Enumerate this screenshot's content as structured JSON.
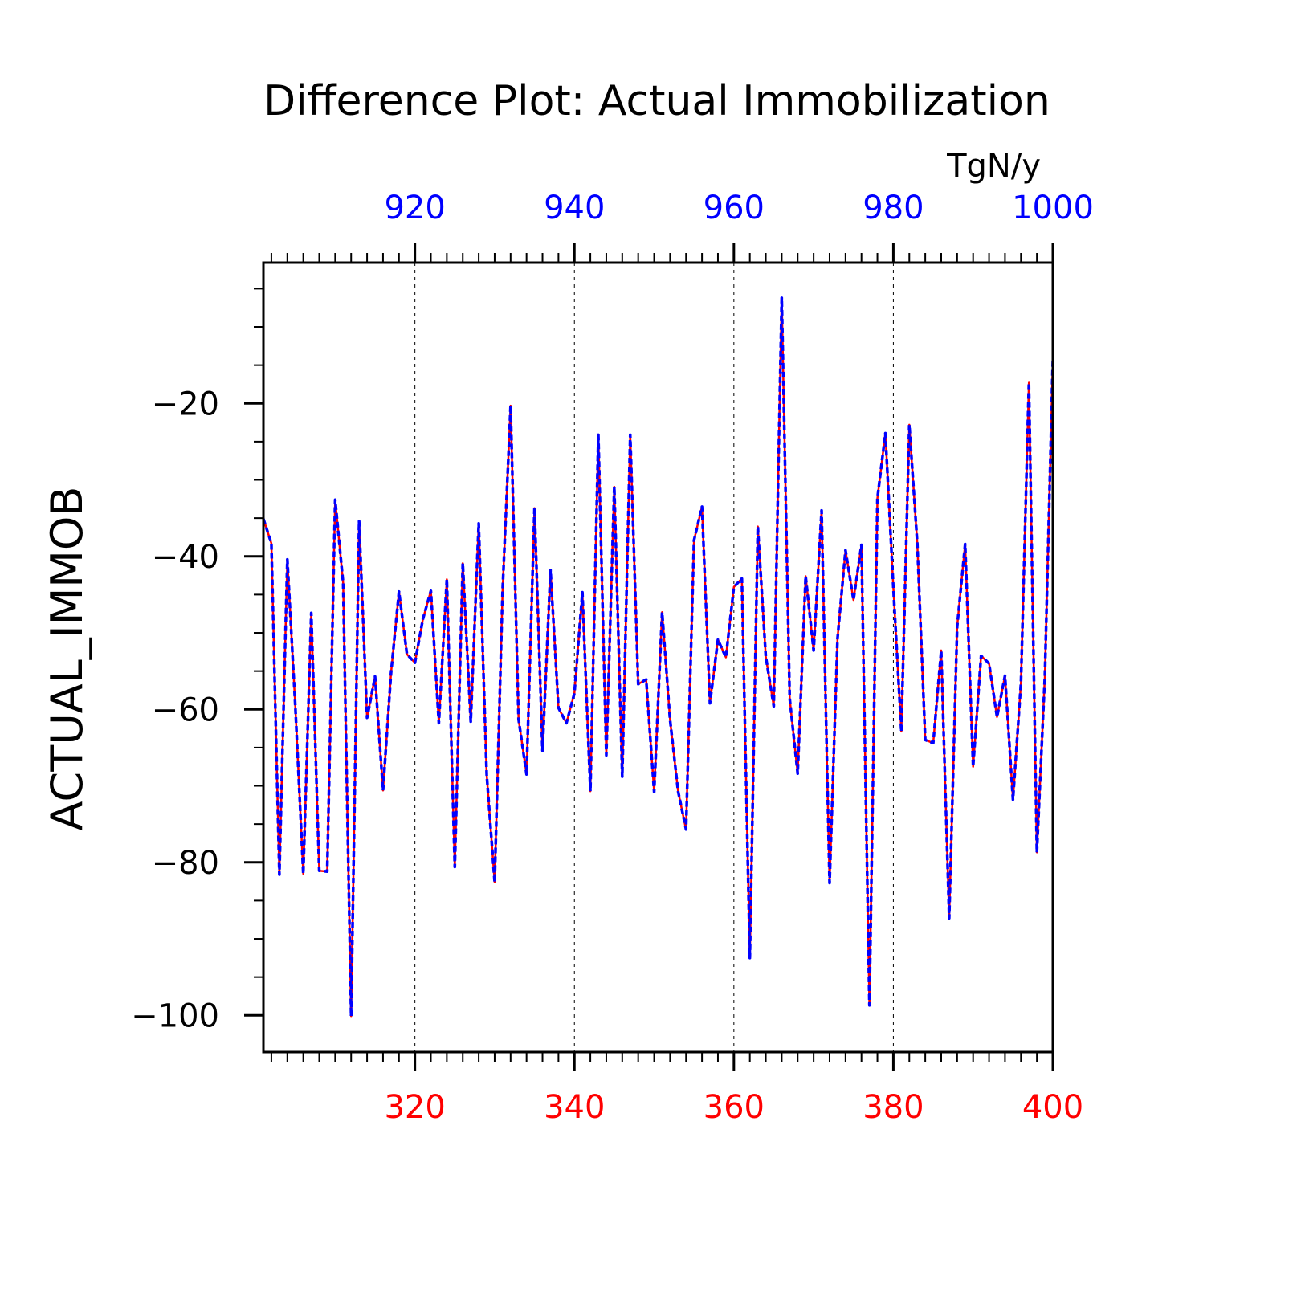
{
  "colors": {
    "series_red": "#ff0000",
    "series_blue": "#0000ff",
    "axis": "#000000",
    "grid": "#000000"
  },
  "chart_data": {
    "type": "line",
    "title": "Difference Plot: Actual Immobilization",
    "units": "TgN/y",
    "ylabel": "ACTUAL_IMMOB",
    "xlabel": "",
    "xlim": [
      301,
      400
    ],
    "xlim_top": [
      901,
      1000
    ],
    "ylim": [
      -104.8,
      -1.6
    ],
    "grid": "vertical dashed at major x ticks",
    "x_ticks_bottom": [
      {
        "value": 320,
        "label": "320"
      },
      {
        "value": 340,
        "label": "340"
      },
      {
        "value": 360,
        "label": "360"
      },
      {
        "value": 380,
        "label": "380"
      },
      {
        "value": 400,
        "label": "400"
      }
    ],
    "x_ticks_top": [
      {
        "value": 920,
        "label": "920"
      },
      {
        "value": 940,
        "label": "940"
      },
      {
        "value": 960,
        "label": "960"
      },
      {
        "value": 980,
        "label": "980"
      },
      {
        "value": 1000,
        "label": "1000"
      }
    ],
    "y_ticks": [
      {
        "value": -20,
        "label": "−20"
      },
      {
        "value": -40,
        "label": "−40"
      },
      {
        "value": -60,
        "label": "−60"
      },
      {
        "value": -80,
        "label": "−80"
      },
      {
        "value": -100,
        "label": "−100"
      }
    ],
    "x": [
      301,
      302,
      303,
      304,
      305,
      306,
      307,
      308,
      309,
      310,
      311,
      312,
      313,
      314,
      315,
      316,
      317,
      318,
      319,
      320,
      321,
      322,
      323,
      324,
      325,
      326,
      327,
      328,
      329,
      330,
      331,
      332,
      333,
      334,
      335,
      336,
      337,
      338,
      339,
      340,
      341,
      342,
      343,
      344,
      345,
      346,
      347,
      348,
      349,
      350,
      351,
      352,
      353,
      354,
      355,
      356,
      357,
      358,
      359,
      360,
      361,
      362,
      363,
      364,
      365,
      366,
      367,
      368,
      369,
      370,
      371,
      372,
      373,
      374,
      375,
      376,
      377,
      378,
      379,
      380,
      381,
      382,
      383,
      384,
      385,
      386,
      387,
      388,
      389,
      390,
      391,
      392,
      393,
      394,
      395,
      396,
      397,
      398,
      399,
      400
    ],
    "series": [
      {
        "style": "solid-red-under-dashed-blue",
        "values": [
          -35.1,
          -38.3,
          -81.6,
          -40.4,
          -59.6,
          -81.5,
          -47.4,
          -81.1,
          -81.2,
          -32.6,
          -43.5,
          -100.1,
          -35.4,
          -61.1,
          -55.7,
          -70.6,
          -55.3,
          -44.6,
          -52.8,
          -53.9,
          -48.2,
          -44.5,
          -61.8,
          -43.0,
          -80.6,
          -40.9,
          -61.6,
          -35.7,
          -68.5,
          -82.6,
          -44.3,
          -20.3,
          -61.3,
          -68.5,
          -33.7,
          -65.4,
          -41.8,
          -59.8,
          -61.8,
          -57.9,
          -44.7,
          -70.7,
          -24.1,
          -66.0,
          -30.9,
          -68.8,
          -24.1,
          -56.7,
          -56.1,
          -70.8,
          -47.3,
          -61.4,
          -70.7,
          -75.7,
          -37.9,
          -33.5,
          -59.2,
          -50.9,
          -53.2,
          -44.0,
          -42.9,
          -92.5,
          -36.1,
          -53.1,
          -59.6,
          -6.2,
          -58.6,
          -68.4,
          -42.6,
          -52.3,
          -34.0,
          -82.7,
          -50.7,
          -39.2,
          -45.7,
          -38.5,
          -98.7,
          -32.4,
          -23.9,
          -44.1,
          -62.9,
          -22.8,
          -38.3,
          -64.0,
          -64.4,
          -52.3,
          -87.3,
          -49.2,
          -38.4,
          -67.5,
          -53.0,
          -54.0,
          -61.0,
          -55.6,
          -71.8,
          -56.6,
          -17.3,
          -78.7,
          -55.7,
          -14.3
        ]
      }
    ]
  }
}
